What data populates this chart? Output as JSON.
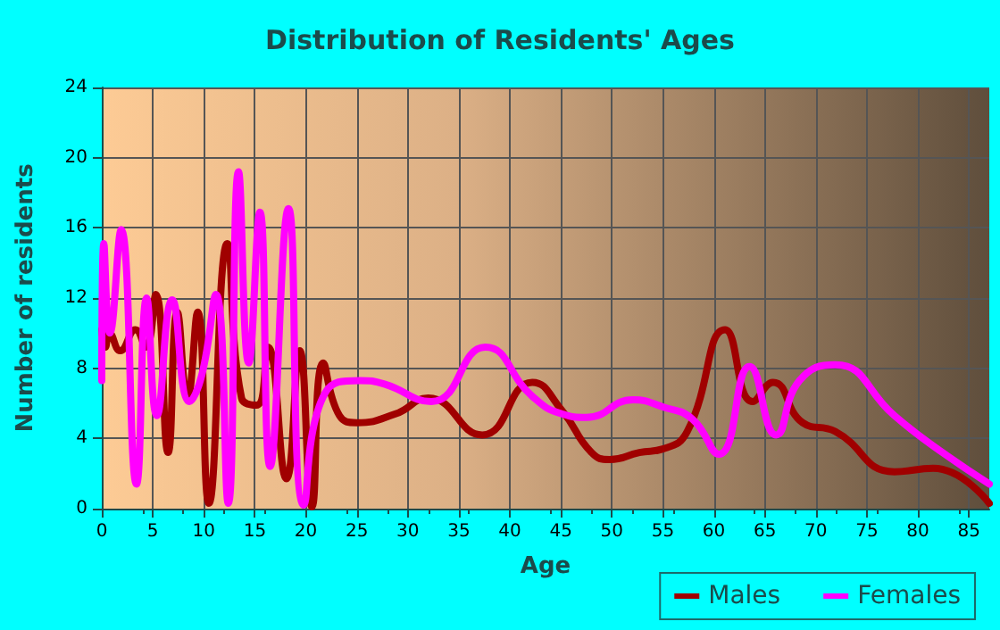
{
  "chart_data": {
    "type": "line",
    "title": "Distribution of Residents' Ages",
    "xlabel": "Age",
    "ylabel": "Number of residents",
    "xlim": [
      0,
      87
    ],
    "xticks": [
      0,
      5,
      10,
      15,
      20,
      25,
      30,
      35,
      40,
      45,
      50,
      55,
      60,
      65,
      70,
      75,
      80,
      85
    ],
    "ylim": [
      0,
      24
    ],
    "yticks": [
      0,
      4,
      8,
      12,
      16,
      20,
      24
    ],
    "grid": true,
    "legend": "bottom right",
    "marker": "none",
    "line_style": "solid",
    "series": [
      {
        "name": "Males",
        "color": "#a00000",
        "x": [
          0,
          0.35,
          0.75,
          1.8,
          3.3,
          4.3,
          5.3,
          6.5,
          7.4,
          8.4,
          9.4,
          10.5,
          12.3,
          13.7,
          15.2,
          16.3,
          18.1,
          19.4,
          20.6,
          21.7,
          23.3,
          25,
          28.8,
          32,
          37.3,
          42.2,
          45.1,
          48,
          49.8,
          52.7,
          55,
          57.4,
          61.1,
          63.8,
          65.8,
          68.7,
          71.9,
          77.7,
          81.5,
          87
        ],
        "values": [
          10.2,
          9.2,
          10,
          9,
          10.2,
          9.2,
          12.2,
          3.2,
          11.2,
          6.3,
          11.2,
          0.3,
          15.1,
          6.3,
          5.9,
          9.2,
          1.7,
          9,
          0.1,
          8.3,
          5.3,
          4.9,
          5.4,
          6.3,
          4.2,
          7.2,
          5.6,
          3.2,
          2.8,
          3.2,
          3.4,
          4.4,
          10.2,
          6.1,
          7.2,
          4.9,
          4.4,
          2.1,
          2.3,
          0.3
        ]
      },
      {
        "name": "Females",
        "color": "#ff00ff",
        "x": [
          0,
          0.2,
          0.8,
          1.9,
          3.4,
          4.4,
          5.4,
          6.9,
          8.6,
          9.8,
          11.2,
          12.4,
          13.4,
          14.4,
          15.5,
          16.5,
          18.3,
          19.8,
          21.9,
          25.3,
          27.7,
          32.3,
          37.6,
          42.2,
          45.1,
          47.5,
          52.1,
          55,
          57.9,
          60.5,
          63.5,
          66.1,
          68.4,
          71.9,
          77.7,
          81.2,
          87
        ],
        "values": [
          7.3,
          15.1,
          10,
          15.9,
          1.4,
          12,
          5.3,
          11.9,
          6.1,
          7.6,
          12.2,
          0.3,
          19.2,
          8.3,
          16.9,
          2.4,
          17.1,
          0.2,
          6.6,
          7.3,
          7.1,
          6.1,
          9.2,
          6.4,
          5.4,
          5.2,
          6.2,
          5.8,
          5.1,
          3.1,
          8.1,
          4.2,
          7.3,
          8.2,
          5.3,
          3.7,
          1.4
        ]
      }
    ]
  }
}
